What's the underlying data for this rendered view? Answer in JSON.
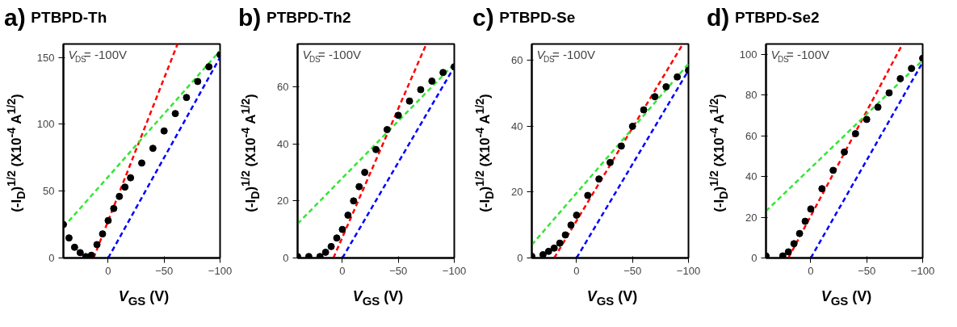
{
  "chart_data": [
    {
      "type": "scatter",
      "title": "PTBPD-Th",
      "xlabel": "V$_{GS}$ (V)",
      "ylabel": "(-I$_{D}$)$^{1/2}$ (X10$^{-4}$ A$^{1/2}$)",
      "annotations": [
        "a)",
        "V$_{DS}$= -100V"
      ],
      "xlim": [
        40,
        -100
      ],
      "ylim": [
        0,
        160
      ],
      "xticks": [
        0,
        -50,
        -100
      ],
      "yticks": [
        0,
        50,
        100,
        150
      ],
      "grid": false,
      "series": [
        {
          "color": "#000000",
          "marker": "circle",
          "x": [
            40,
            35,
            30,
            25,
            20,
            15,
            10,
            5,
            0,
            -5,
            -10,
            -15,
            -20,
            -30,
            -40,
            -50,
            -60,
            -70,
            -80,
            -90,
            -100
          ],
          "values": [
            25,
            15,
            8,
            4,
            1,
            2,
            10,
            18,
            28,
            37,
            46,
            53,
            60,
            71,
            82,
            95,
            108,
            120,
            132,
            143,
            152
          ]
        },
        {
          "type": "line",
          "line_style": "dashed",
          "color": "#ff0000",
          "x": [
            13,
            -62
          ],
          "values": [
            0,
            160
          ]
        },
        {
          "type": "line",
          "line_style": "dashed",
          "color": "#0000ff",
          "x": [
            0,
            -100
          ],
          "values": [
            0,
            150
          ]
        },
        {
          "type": "line",
          "line_style": "dashed",
          "color": "#33e633",
          "x": [
            40,
            -100
          ],
          "values": [
            23,
            155
          ]
        }
      ]
    },
    {
      "type": "scatter",
      "title": "PTBPD-Th2",
      "xlabel": "V$_{GS}$ (V)",
      "ylabel": "(-I$_{D}$)$^{1/2}$ (X10$^{-4}$ A$^{1/2}$)",
      "annotations": [
        "b)",
        "V$_{DS}$= -100V"
      ],
      "xlim": [
        40,
        -100
      ],
      "ylim": [
        0,
        75
      ],
      "xticks": [
        0,
        -50,
        -100
      ],
      "yticks": [
        0,
        20,
        40,
        60
      ],
      "grid": false,
      "series": [
        {
          "color": "#000000",
          "marker": "circle",
          "x": [
            40,
            30,
            20,
            15,
            10,
            5,
            0,
            -5,
            -10,
            -15,
            -20,
            -30,
            -40,
            -50,
            -60,
            -70,
            -80,
            -90,
            -100
          ],
          "values": [
            0.5,
            0.5,
            0.5,
            2,
            4,
            7,
            10,
            15,
            20,
            25,
            30,
            38,
            45,
            50,
            55,
            59,
            62,
            65,
            67
          ]
        },
        {
          "type": "line",
          "line_style": "dashed",
          "color": "#ff0000",
          "x": [
            8,
            -75
          ],
          "values": [
            0,
            75
          ]
        },
        {
          "type": "line",
          "line_style": "dashed",
          "color": "#0000ff",
          "x": [
            0,
            -100
          ],
          "values": [
            0,
            67
          ]
        },
        {
          "type": "line",
          "line_style": "dashed",
          "color": "#33e633",
          "x": [
            40,
            -100
          ],
          "values": [
            12,
            68
          ]
        }
      ]
    },
    {
      "type": "scatter",
      "title": "PTBPD-Se",
      "xlabel": "V$_{GS}$ (V)",
      "ylabel": "(-I$_{D}$)$^{1/2}$ (X10$^{-4}$ A$^{1/2}$)",
      "annotations": [
        "c)",
        "V$_{DS}$= -100V"
      ],
      "xlim": [
        40,
        -100
      ],
      "ylim": [
        0,
        65
      ],
      "xticks": [
        0,
        -50,
        -100
      ],
      "yticks": [
        0,
        20,
        40,
        60
      ],
      "grid": false,
      "series": [
        {
          "color": "#000000",
          "marker": "circle",
          "x": [
            40,
            30,
            25,
            20,
            15,
            10,
            5,
            0,
            -10,
            -20,
            -30,
            -40,
            -50,
            -60,
            -70,
            -80,
            -90,
            -100
          ],
          "values": [
            0.5,
            1,
            2,
            3,
            4.5,
            7,
            10,
            13,
            19,
            24,
            29,
            34,
            40,
            45,
            49,
            52,
            55,
            57
          ]
        },
        {
          "type": "line",
          "line_style": "dashed",
          "color": "#ff0000",
          "x": [
            20,
            -95
          ],
          "values": [
            0,
            65
          ]
        },
        {
          "type": "line",
          "line_style": "dashed",
          "color": "#0000ff",
          "x": [
            0,
            -100
          ],
          "values": [
            0,
            57
          ]
        },
        {
          "type": "line",
          "line_style": "dashed",
          "color": "#33e633",
          "x": [
            40,
            -100
          ],
          "values": [
            4,
            59
          ]
        }
      ]
    },
    {
      "type": "scatter",
      "title": "PTBPD-Se2",
      "xlabel": "V$_{GS}$ (V)",
      "ylabel": "(-I$_{D}$)$^{1/2}$ (X10$^{-4}$ A$^{1/2}$)",
      "annotations": [
        "d)",
        "V$_{DS}$= -100V"
      ],
      "xlim": [
        40,
        -100
      ],
      "ylim": [
        0,
        105
      ],
      "xticks": [
        0,
        -50,
        -100
      ],
      "yticks": [
        0,
        20,
        40,
        60,
        80,
        100
      ],
      "grid": false,
      "series": [
        {
          "color": "#000000",
          "marker": "circle",
          "x": [
            40,
            25,
            20,
            15,
            10,
            5,
            0,
            -10,
            -20,
            -30,
            -40,
            -50,
            -60,
            -70,
            -80,
            -90,
            -100
          ],
          "values": [
            1,
            1,
            3,
            7,
            12,
            18,
            24,
            34,
            43,
            52,
            61,
            68,
            74,
            81,
            88,
            93,
            98
          ]
        },
        {
          "type": "line",
          "line_style": "dashed",
          "color": "#ff0000",
          "x": [
            20,
            -82
          ],
          "values": [
            0,
            105
          ]
        },
        {
          "type": "line",
          "line_style": "dashed",
          "color": "#0000ff",
          "x": [
            0,
            -100
          ],
          "values": [
            0,
            96
          ]
        },
        {
          "type": "line",
          "line_style": "dashed",
          "color": "#33e633",
          "x": [
            40,
            -100
          ],
          "values": [
            23,
            97
          ]
        }
      ]
    }
  ]
}
